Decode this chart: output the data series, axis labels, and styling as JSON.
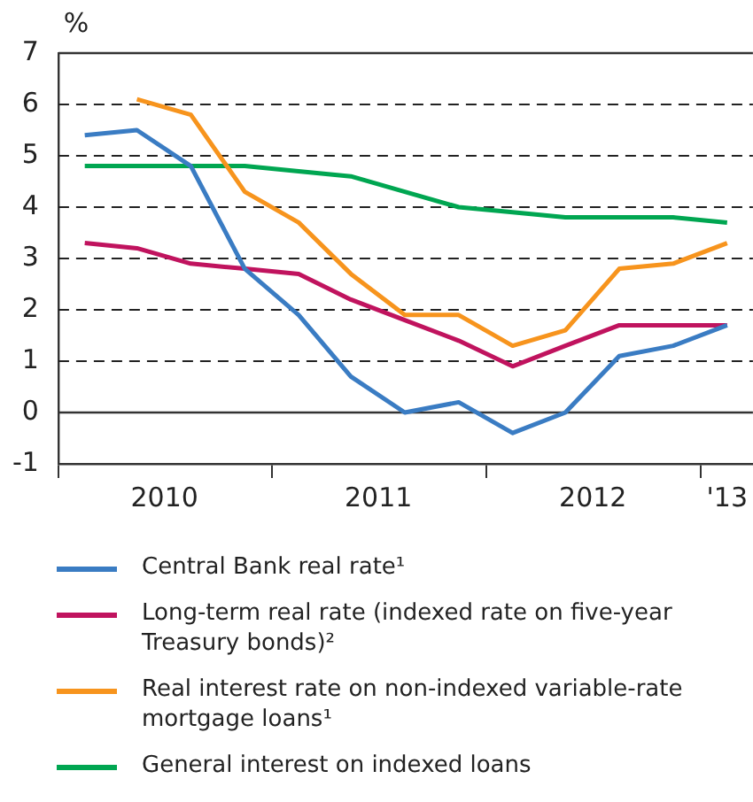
{
  "chart_data": {
    "type": "line",
    "ylabel": "%",
    "x": [
      "2010-02-15",
      "2010-05-15",
      "2010-08-15",
      "2010-11-15",
      "2011-02-15",
      "2011-05-15",
      "2011-08-15",
      "2011-11-15",
      "2012-02-15",
      "2012-05-15",
      "2012-08-15",
      "2012-11-15",
      "2013-02-15"
    ],
    "xlim": [
      "2010-01-01",
      "2013-03-31"
    ],
    "xticks": [
      {
        "value": "2010-01-01",
        "label": null
      },
      {
        "value": "2010-07-01",
        "label": "2010"
      },
      {
        "value": "2011-01-01",
        "label": null
      },
      {
        "value": "2011-07-01",
        "label": "2011"
      },
      {
        "value": "2012-01-01",
        "label": null
      },
      {
        "value": "2012-07-01",
        "label": "2012"
      },
      {
        "value": "2013-01-01",
        "label": null
      },
      {
        "value": "2013-02-15",
        "label": "'13"
      }
    ],
    "ylim": [
      -1,
      7
    ],
    "yticks": [
      -1,
      0,
      1,
      2,
      3,
      4,
      5,
      6,
      7
    ],
    "grid": "y",
    "legend": "bottom",
    "marker": "none",
    "line_style": "solid",
    "series": [
      {
        "name": "Central Bank real rate¹",
        "color": "#3a7cc3",
        "values": [
          5.4,
          5.5,
          4.8,
          2.8,
          1.9,
          0.7,
          0.0,
          0.2,
          -0.4,
          0.0,
          1.1,
          1.3,
          1.7
        ]
      },
      {
        "name": "Long-term real rate (indexed rate on five-year Treasury bonds)²",
        "color": "#c0135e",
        "values": [
          3.3,
          3.2,
          2.9,
          2.8,
          2.7,
          2.2,
          1.8,
          1.4,
          0.9,
          1.3,
          1.7,
          1.7,
          1.7
        ]
      },
      {
        "name": "Real interest rate on non-indexed variable-rate mortgage loans¹",
        "color": "#f7941d",
        "values": [
          null,
          6.1,
          5.8,
          4.3,
          3.7,
          2.7,
          1.9,
          1.9,
          1.3,
          1.6,
          2.8,
          2.9,
          3.3
        ]
      },
      {
        "name": "General interest on indexed loans",
        "color": "#00a651",
        "values": [
          4.8,
          4.8,
          4.8,
          4.8,
          4.7,
          4.6,
          4.3,
          4.0,
          3.9,
          3.8,
          3.8,
          3.8,
          3.7
        ]
      }
    ]
  }
}
